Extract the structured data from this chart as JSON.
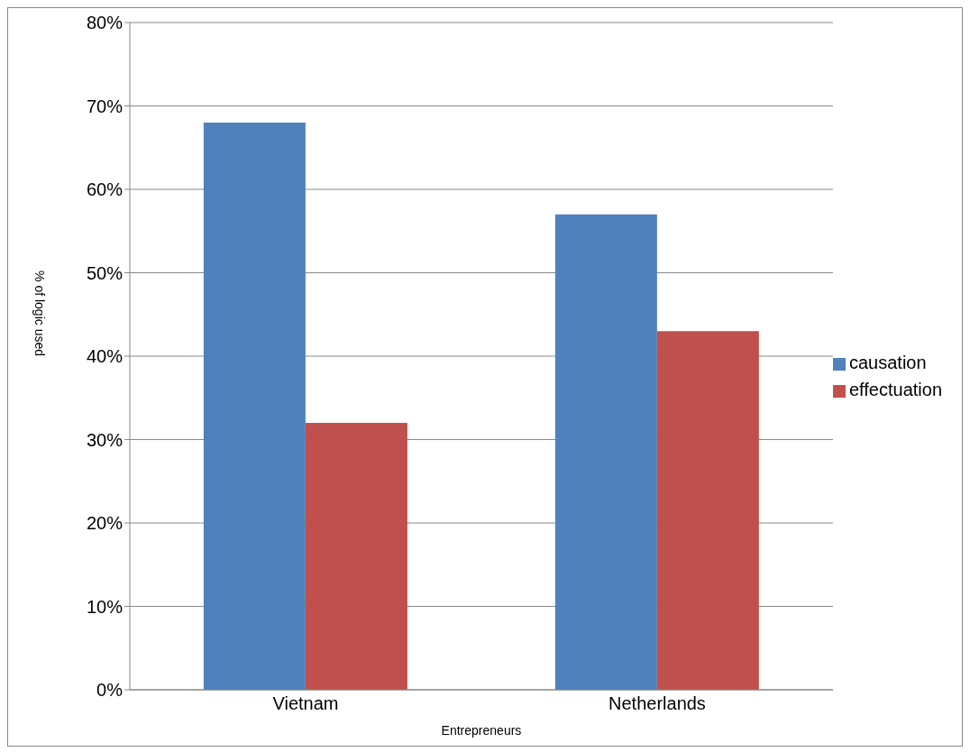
{
  "chart_data": {
    "type": "bar",
    "xlabel": "Entrepreneurs",
    "ylabel": "% of logic used",
    "categories": [
      "Vietnam",
      "Netherlands"
    ],
    "series": [
      {
        "name": "causation",
        "color": "#4f81bd",
        "values": [
          68,
          57
        ]
      },
      {
        "name": "effectuation",
        "color": "#c0504d",
        "values": [
          32,
          43
        ]
      }
    ],
    "ylim": [
      0,
      80
    ],
    "yticks": [
      {
        "value": 0,
        "label": "0%"
      },
      {
        "value": 10,
        "label": "10%"
      },
      {
        "value": 20,
        "label": "20%"
      },
      {
        "value": 30,
        "label": "30%"
      },
      {
        "value": 40,
        "label": "40%"
      },
      {
        "value": 50,
        "label": "50%"
      },
      {
        "value": 60,
        "label": "60%"
      },
      {
        "value": 70,
        "label": "70%"
      },
      {
        "value": 80,
        "label": "80%"
      }
    ],
    "grid": "y",
    "legend": "right"
  }
}
